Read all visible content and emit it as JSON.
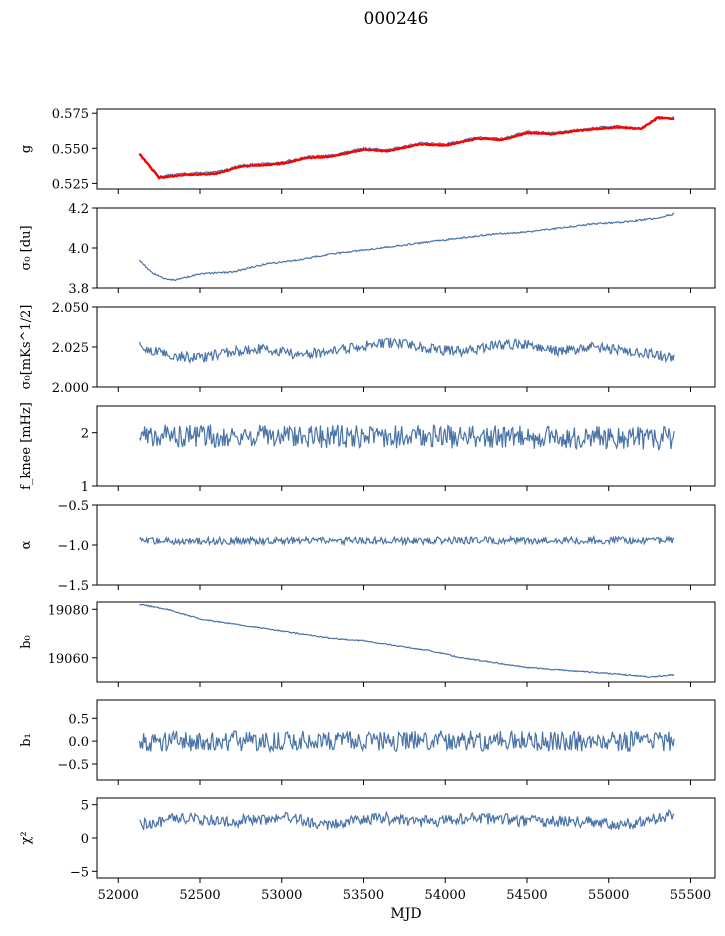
{
  "figure": {
    "title": "000246"
  },
  "chart_data": [
    {
      "type": "line",
      "id": "g",
      "ylabel": "g",
      "ylim": [
        0.521,
        0.578
      ],
      "yticks": [
        0.525,
        0.55,
        0.575
      ],
      "yticklabels": [
        "0.525",
        "0.550",
        "0.575"
      ],
      "xlim": [
        51870,
        55650
      ],
      "grid": false,
      "series": [
        {
          "color": "#4a74a8",
          "x": [
            52130,
            52250,
            52400,
            52600,
            52750,
            53000,
            53150,
            53300,
            53500,
            53650,
            53850,
            54000,
            54200,
            54350,
            54500,
            54650,
            54850,
            55050,
            55200,
            55300,
            55400
          ],
          "values": [
            0.546,
            0.53,
            0.532,
            0.533,
            0.538,
            0.54,
            0.544,
            0.545,
            0.55,
            0.549,
            0.554,
            0.553,
            0.558,
            0.557,
            0.562,
            0.561,
            0.564,
            0.566,
            0.564,
            0.571,
            0.572
          ]
        },
        {
          "color": "#ff0000",
          "x": [
            52130,
            52250,
            52400,
            52600,
            52750,
            53000,
            53150,
            53300,
            53500,
            53650,
            53850,
            54000,
            54200,
            54350,
            54500,
            54650,
            54850,
            55050,
            55200,
            55300,
            55400
          ],
          "values": [
            0.546,
            0.529,
            0.531,
            0.532,
            0.537,
            0.539,
            0.543,
            0.544,
            0.549,
            0.548,
            0.553,
            0.552,
            0.557,
            0.556,
            0.561,
            0.56,
            0.563,
            0.565,
            0.564,
            0.572,
            0.571
          ]
        }
      ]
    },
    {
      "type": "line",
      "id": "sigma0",
      "ylabel": "σ₀ [du]",
      "ylim": [
        3.8,
        4.2
      ],
      "yticks": [
        3.8,
        4.0,
        4.2
      ],
      "yticklabels": [
        "3.8",
        "4.0",
        "4.2"
      ],
      "xlim": [
        51870,
        55650
      ],
      "grid": false,
      "series": [
        {
          "color": "#4a74a8",
          "x": [
            52130,
            52200,
            52270,
            52350,
            52500,
            52700,
            52900,
            53100,
            53300,
            53500,
            53700,
            53900,
            54100,
            54300,
            54500,
            54700,
            54900,
            55100,
            55300,
            55400
          ],
          "values": [
            3.94,
            3.88,
            3.85,
            3.84,
            3.87,
            3.88,
            3.92,
            3.94,
            3.97,
            3.99,
            4.01,
            4.03,
            4.05,
            4.07,
            4.08,
            4.1,
            4.12,
            4.13,
            4.15,
            4.17
          ]
        }
      ]
    },
    {
      "type": "line",
      "id": "sigma0_mks",
      "ylabel": "σ₀[mKs^1/2]",
      "ylim": [
        2.0,
        2.05
      ],
      "yticks": [
        2.0,
        2.025,
        2.05
      ],
      "yticklabels": [
        "2.000",
        "2.025",
        "2.050"
      ],
      "xlim": [
        51870,
        55650
      ],
      "grid": false,
      "series": [
        {
          "color": "#4a74a8",
          "x": [
            52130,
            52300,
            52500,
            52700,
            52900,
            53100,
            53300,
            53500,
            53700,
            53900,
            54100,
            54300,
            54500,
            54700,
            54900,
            55100,
            55300,
            55400
          ],
          "values": [
            2.025,
            2.02,
            2.018,
            2.022,
            2.024,
            2.02,
            2.022,
            2.026,
            2.028,
            2.024,
            2.022,
            2.026,
            2.027,
            2.022,
            2.025,
            2.023,
            2.02,
            2.018
          ]
        }
      ]
    },
    {
      "type": "line",
      "id": "fknee",
      "ylabel": "f_knee [mHz]",
      "ylim": [
        1,
        2.5
      ],
      "yticks": [
        1,
        2
      ],
      "yticklabels": [
        "1",
        "2"
      ],
      "xlim": [
        51870,
        55650
      ],
      "grid": false,
      "series": [
        {
          "color": "#4a74a8",
          "x": [
            52130,
            55400
          ],
          "values": [
            1.95,
            1.9
          ]
        }
      ]
    },
    {
      "type": "line",
      "id": "alpha",
      "ylabel": "α",
      "ylim": [
        -1.5,
        -0.5
      ],
      "yticks": [
        -1.5,
        -1.0,
        -0.5
      ],
      "yticklabels": [
        "−1.5",
        "−1.0",
        "−0.5"
      ],
      "xlim": [
        51870,
        55650
      ],
      "grid": false,
      "series": [
        {
          "color": "#4a74a8",
          "x": [
            52130,
            55400
          ],
          "values": [
            -0.95,
            -0.94
          ]
        }
      ]
    },
    {
      "type": "line",
      "id": "b0",
      "ylabel": "b₀",
      "ylim": [
        19050,
        19083
      ],
      "yticks": [
        19060,
        19080
      ],
      "yticklabels": [
        "19060",
        "19080"
      ],
      "xlim": [
        51870,
        55650
      ],
      "grid": false,
      "series": [
        {
          "color": "#4a74a8",
          "x": [
            52130,
            52300,
            52500,
            52700,
            52900,
            53100,
            53300,
            53500,
            53700,
            53900,
            54100,
            54300,
            54500,
            54700,
            54900,
            55100,
            55250,
            55400
          ],
          "values": [
            19082,
            19080,
            19076,
            19074,
            19072,
            19070,
            19068,
            19067,
            19065,
            19063,
            19060,
            19058,
            19056,
            19055,
            19054,
            19053,
            19052,
            19053
          ]
        }
      ]
    },
    {
      "type": "line",
      "id": "b1",
      "ylabel": "b₁",
      "ylim": [
        -0.85,
        0.9
      ],
      "yticks": [
        -0.5,
        0.0,
        0.5
      ],
      "yticklabels": [
        "−0.5",
        "0.0",
        "0.5"
      ],
      "xlim": [
        51870,
        55650
      ],
      "grid": false,
      "series": [
        {
          "color": "#4a74a8",
          "x": [
            52130,
            55400
          ],
          "values": [
            0.0,
            0.0
          ]
        }
      ]
    },
    {
      "type": "line",
      "id": "chi2",
      "ylabel": "χ²",
      "ylim": [
        -6,
        6
      ],
      "yticks": [
        -5,
        0,
        5
      ],
      "yticklabels": [
        "−5",
        "0",
        "5"
      ],
      "xlim": [
        51870,
        55650
      ],
      "grid": false,
      "xlabel": "MJD",
      "xticks": [
        52000,
        52500,
        53000,
        53500,
        54000,
        54500,
        55000,
        55500
      ],
      "xticklabels": [
        "52000",
        "52500",
        "53000",
        "53500",
        "54000",
        "54500",
        "55000",
        "55500"
      ],
      "series": [
        {
          "color": "#4a74a8",
          "x": [
            52130,
            52400,
            52700,
            53000,
            53300,
            53600,
            53900,
            54200,
            54500,
            54800,
            55100,
            55400
          ],
          "values": [
            2.0,
            3.0,
            2.5,
            3.0,
            2.0,
            3.0,
            2.5,
            3.0,
            2.5,
            2.5,
            2.0,
            3.5
          ]
        }
      ]
    }
  ]
}
